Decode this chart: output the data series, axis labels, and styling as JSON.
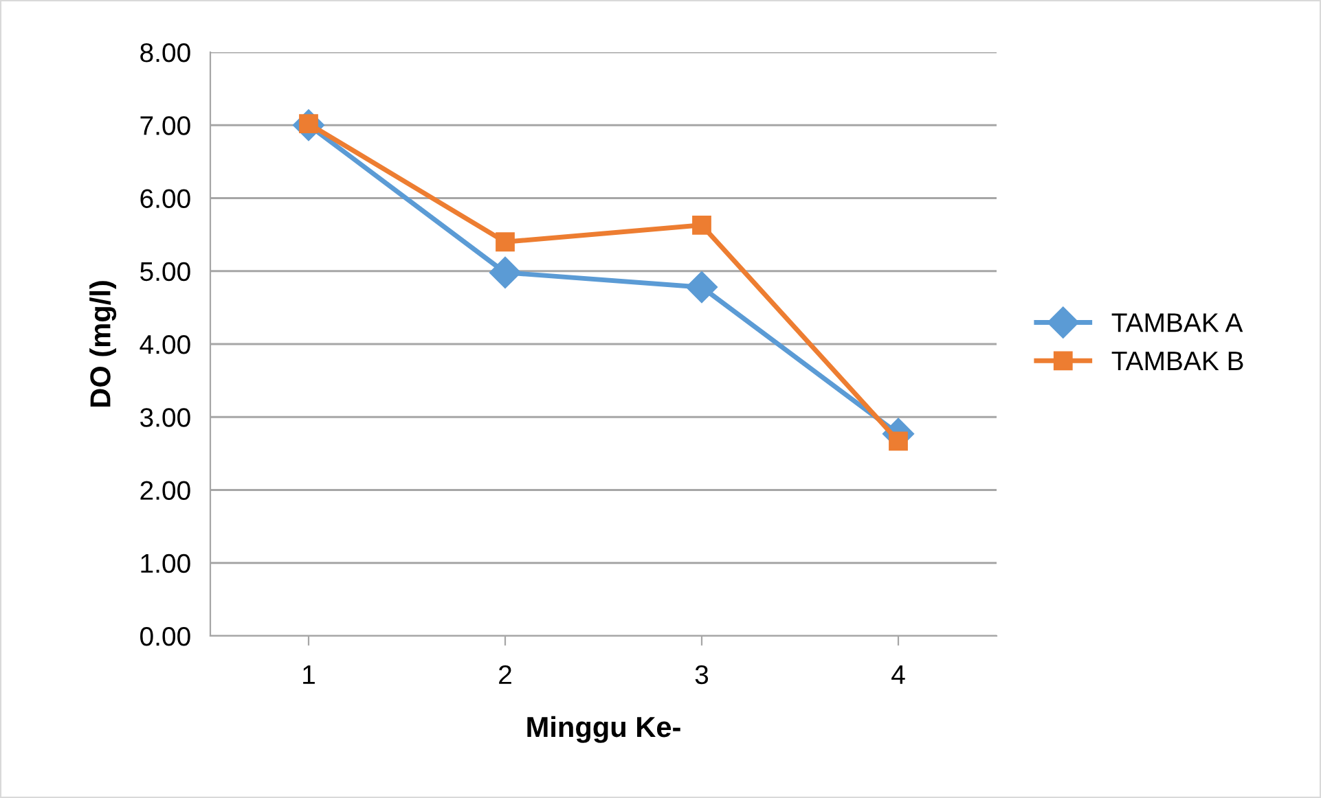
{
  "chart_data": {
    "type": "line",
    "xlabel": "Minggu Ke-",
    "ylabel": "DO (mg/l)",
    "categories": [
      "1",
      "2",
      "3",
      "4"
    ],
    "series": [
      {
        "name": "TAMBAK A",
        "color": "#5b9bd5",
        "marker": "diamond",
        "values": [
          7.0,
          4.98,
          4.78,
          2.77
        ]
      },
      {
        "name": "TAMBAK B",
        "color": "#ed7d31",
        "marker": "square",
        "values": [
          7.02,
          5.4,
          5.63,
          2.67
        ]
      }
    ],
    "ylim": [
      0,
      8
    ],
    "yticks": [
      {
        "value": 0,
        "label": "0.00"
      },
      {
        "value": 1,
        "label": "1.00"
      },
      {
        "value": 2,
        "label": "2.00"
      },
      {
        "value": 3,
        "label": "3.00"
      },
      {
        "value": 4,
        "label": "4.00"
      },
      {
        "value": 5,
        "label": "5.00"
      },
      {
        "value": 6,
        "label": "6.00"
      },
      {
        "value": 7,
        "label": "7.00"
      },
      {
        "value": 8,
        "label": "8.00"
      }
    ],
    "grid": "y",
    "legend": "right",
    "line_style": "solid"
  }
}
